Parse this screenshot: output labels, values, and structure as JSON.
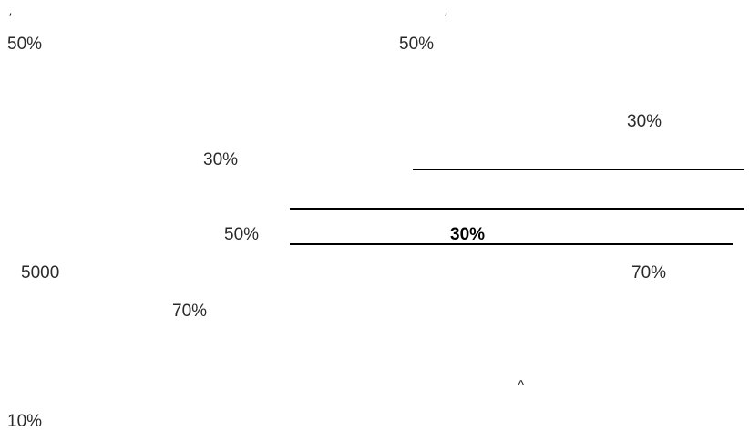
{
  "fragments": {
    "tick_left": "′",
    "tick_right": "′",
    "top_left_pct": "50%",
    "top_mid_pct": "50%",
    "right_30": "30%",
    "mid_left_30": "30%",
    "left_50": "50%",
    "bold_30": "30%",
    "num_5000": "5000",
    "right_70": "70%",
    "left_70": "70%",
    "caret": "^",
    "bottom_10": "10%"
  }
}
